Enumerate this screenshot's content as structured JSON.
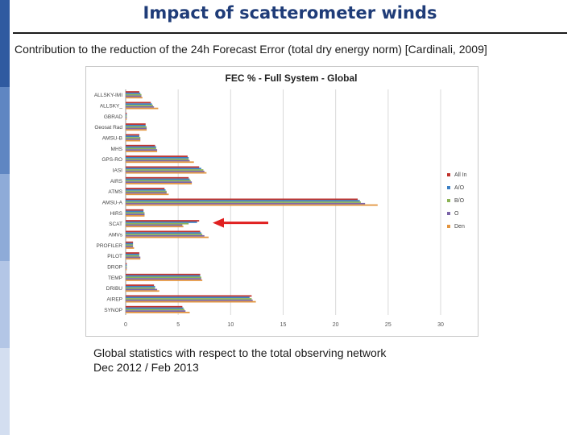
{
  "slide": {
    "title": "Impact of scatterometer winds",
    "subtitle": "Contribution to the reduction of the 24h Forecast Error (total dry energy norm) [Cardinali, 2009]",
    "footnote_line1": "Global statistics with respect to the total observing network",
    "footnote_line2": "Dec 2012 / Feb 2013"
  },
  "colors": {
    "title": "#1f3c78",
    "sidebar": [
      "#2f5aa0",
      "#5f86c2",
      "#8eabd8",
      "#b3c6e6",
      "#d3def0"
    ],
    "arrow": "#e02020"
  },
  "chart_data": {
    "type": "bar",
    "orientation": "horizontal",
    "title": "FEC % - Full System - Global",
    "categories": [
      "ALLSKY-IMI",
      "ALLSKY_",
      "GBRAD",
      "Geosat Rad",
      "AMSU-B",
      "MHS",
      "GPS-RO",
      "IASI",
      "AIRS",
      "ATMS",
      "AMSU-A",
      "HIRS",
      "SCAT",
      "AMVs",
      "PROFILER",
      "PILOT",
      "DROP",
      "TEMP",
      "DRIBU",
      "AIREP",
      "SYNOP"
    ],
    "series": [
      {
        "name": "All In",
        "color": "#c0312b",
        "values": [
          1.3,
          2.4,
          0.1,
          1.9,
          1.3,
          2.8,
          5.9,
          7.0,
          6.0,
          3.7,
          22.1,
          1.7,
          7.0,
          7.1,
          0.7,
          1.3,
          0.1,
          7.1,
          2.7,
          12.0,
          5.4
        ]
      },
      {
        "name": "A/O",
        "color": "#3b7fc4",
        "values": [
          1.4,
          2.5,
          0.1,
          1.9,
          1.3,
          2.9,
          6.0,
          7.2,
          6.1,
          3.8,
          22.3,
          1.7,
          6.8,
          7.2,
          0.7,
          1.3,
          0.1,
          7.1,
          2.8,
          11.8,
          5.5
        ]
      },
      {
        "name": "B/O",
        "color": "#8cb356",
        "values": [
          1.5,
          2.6,
          0.1,
          2.0,
          1.4,
          2.9,
          6.0,
          7.4,
          6.2,
          3.9,
          22.4,
          1.8,
          6.0,
          7.3,
          0.7,
          1.3,
          0.1,
          7.2,
          2.8,
          12.0,
          5.6
        ]
      },
      {
        "name": "O",
        "color": "#7b65a8",
        "values": [
          1.5,
          2.7,
          0.1,
          2.0,
          1.4,
          3.0,
          6.1,
          7.5,
          6.3,
          3.9,
          22.8,
          1.8,
          5.4,
          7.5,
          0.7,
          1.4,
          0.1,
          7.2,
          3.0,
          12.1,
          5.7
        ]
      },
      {
        "name": "Den",
        "color": "#e3953f",
        "values": [
          1.6,
          3.1,
          0.1,
          2.0,
          1.4,
          3.0,
          6.5,
          7.7,
          6.3,
          4.1,
          24.0,
          1.8,
          5.5,
          7.9,
          0.8,
          1.4,
          0.1,
          7.3,
          3.2,
          12.4,
          6.1
        ]
      }
    ],
    "xlim": [
      0,
      30
    ],
    "xticks": [
      0,
      5,
      10,
      15,
      20,
      25,
      30
    ],
    "grid": true,
    "legend": "right",
    "annotation": "red arrow pointing to SCAT"
  }
}
